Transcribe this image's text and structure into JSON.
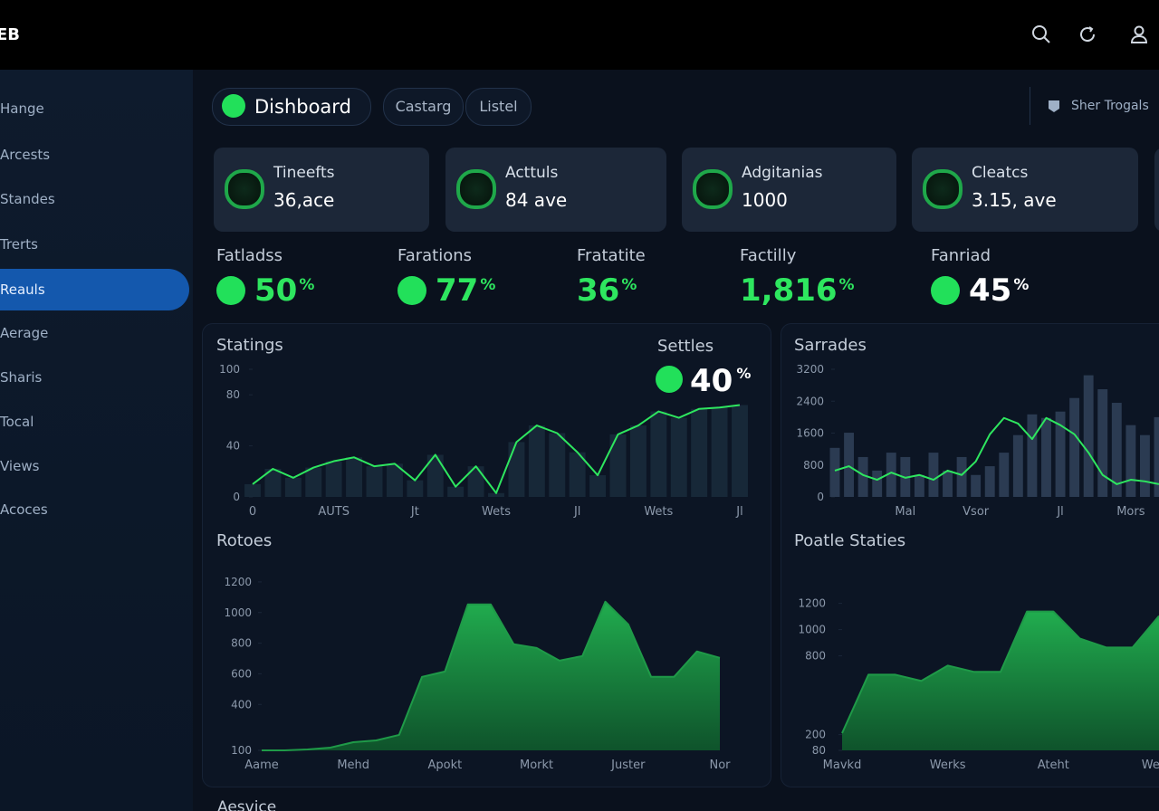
{
  "topbar": {
    "logo": "EB"
  },
  "sidebar": {
    "items": [
      "Hange",
      "Arcests",
      "Standes",
      "Trerts",
      "Reauls",
      "Aerage",
      "Sharis",
      "Tocal",
      "Views",
      "Acoces"
    ],
    "active": 4
  },
  "tabs": {
    "items": [
      "Dishboard",
      "Castarg",
      "Listel"
    ],
    "right": "Sher Trogals"
  },
  "cards": [
    {
      "label": "Tineefts",
      "value": "36,ace"
    },
    {
      "label": "Acttuls",
      "value": "84 ave"
    },
    {
      "label": "Adgitanias",
      "value": "1000"
    },
    {
      "label": "Cleatcs",
      "value": "3.15, ave"
    }
  ],
  "stats": [
    {
      "label": "Fatladss",
      "number": "50",
      "unit": "%",
      "color": "#2ee65f",
      "icon": true
    },
    {
      "label": "Farations",
      "number": "77",
      "unit": "%",
      "color": "#2ee65f",
      "icon": true
    },
    {
      "label": "Fratatite",
      "number": "36",
      "unit": "%",
      "color": "#2ee65f",
      "icon": false
    },
    {
      "label": "Factilly",
      "number": "1,816",
      "unit": "%",
      "color": "#2ee65f",
      "icon": false
    },
    {
      "label": "Fanriad",
      "number": "45",
      "unit": "%",
      "color": "#ffffff",
      "icon": true
    }
  ],
  "chart_data": [
    {
      "type": "line",
      "title": "Statings",
      "annotation": {
        "label": "Settles",
        "number": "40",
        "unit": "%"
      },
      "categories": [
        "0",
        null,
        null,
        null,
        "AUTS",
        null,
        null,
        null,
        "Jt",
        null,
        null,
        null,
        "Wets",
        null,
        null,
        null,
        "Jl",
        null,
        null,
        null,
        "Wets",
        null,
        null,
        null,
        "Jl"
      ],
      "series": [
        {
          "color": "#2ee65f",
          "values": [
            10,
            22,
            15,
            23,
            28,
            31,
            24,
            26,
            13,
            33,
            8,
            24,
            3,
            43,
            56,
            50,
            35,
            17,
            49,
            56,
            67,
            62,
            69,
            70,
            72
          ]
        }
      ],
      "ylim": [
        0,
        100
      ],
      "yticks": [
        0,
        40,
        80,
        100
      ],
      "grid": false
    },
    {
      "type": "combo",
      "title": "Sarrades",
      "categories": [
        null,
        null,
        null,
        null,
        null,
        "Mal",
        null,
        null,
        null,
        null,
        "Vsor",
        null,
        null,
        null,
        null,
        null,
        "Jl",
        null,
        null,
        null,
        null,
        "Mors",
        null,
        null
      ],
      "series": [
        {
          "type": "bar",
          "color": "#2b3b52",
          "values": [
            1230,
            1610,
            1000,
            660,
            1110,
            1000,
            550,
            1110,
            660,
            1000,
            550,
            770,
            1110,
            1550,
            2070,
            1980,
            2140,
            2480,
            3050,
            2700,
            2360,
            1800,
            1550,
            2000
          ]
        },
        {
          "type": "line",
          "color": "#2ee65f",
          "values": [
            660,
            770,
            550,
            430,
            610,
            480,
            550,
            430,
            660,
            550,
            890,
            1570,
            1980,
            1840,
            1450,
            1980,
            1800,
            1570,
            1110,
            550,
            320,
            430,
            390,
            320
          ]
        }
      ],
      "ylim": [
        0,
        3200
      ],
      "yticks": [
        0,
        800,
        1600,
        2400,
        3200
      ],
      "grid": false
    },
    {
      "type": "area",
      "title": "Rotoes",
      "categories": [
        "Aame",
        null,
        null,
        null,
        "Mehd",
        null,
        null,
        null,
        "Apokt",
        null,
        null,
        null,
        "Morkt",
        null,
        null,
        null,
        "Juster",
        null,
        null,
        null,
        "Nor"
      ],
      "series": [
        {
          "color": "#1f9a48",
          "values": [
            100,
            100,
            106,
            118,
            153,
            165,
            201,
            580,
            615,
            1053,
            1053,
            793,
            769,
            686,
            716,
            1071,
            923,
            580,
            580,
            746,
            704
          ]
        }
      ],
      "ylim": [
        100,
        1300
      ],
      "yticks": [
        100,
        400,
        600,
        800,
        1000,
        1200
      ],
      "grid": false
    },
    {
      "type": "area",
      "title": "Poatle Staties",
      "categories": [
        "Mavkd",
        null,
        null,
        null,
        "Werks",
        null,
        null,
        null,
        "Ateht",
        null,
        null,
        null,
        "Wentt"
      ],
      "series": [
        {
          "color": "#1f9a48",
          "values": [
            211,
            657,
            657,
            609,
            726,
            678,
            678,
            1138,
            1138,
            932,
            864,
            864,
            1104
          ]
        }
      ],
      "ylim": [
        80,
        1480
      ],
      "yticks": [
        80,
        200,
        800,
        1000,
        1200
      ],
      "grid": false
    }
  ],
  "footer": {
    "heading": "Aesvice"
  }
}
